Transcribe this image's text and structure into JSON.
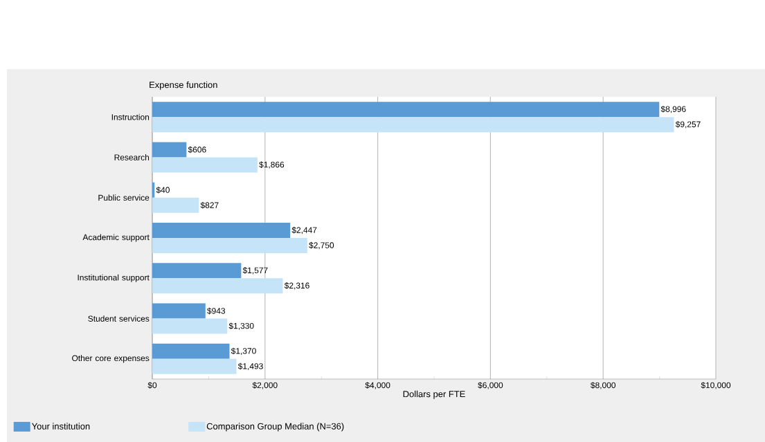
{
  "chart_data": {
    "type": "bar",
    "orientation": "horizontal",
    "ylabel": "Expense function",
    "xlabel": "Dollars per FTE",
    "categories": [
      "Instruction",
      "Research",
      "Public service",
      "Academic support",
      "Institutional support",
      "Student services",
      "Other core expenses"
    ],
    "series": [
      {
        "name": "Your institution",
        "color": "#5b9bd5",
        "values": [
          8996,
          606,
          40,
          2447,
          1577,
          943,
          1370
        ],
        "value_labels": [
          "$8,996",
          "$606",
          "$40",
          "$2,447",
          "$1,577",
          "$943",
          "$1,370"
        ]
      },
      {
        "name": "Comparison Group Median (N=36)",
        "color": "#c6e4f7",
        "values": [
          9257,
          1866,
          827,
          2750,
          2316,
          1330,
          1493
        ],
        "value_labels": [
          "$9,257",
          "$1,866",
          "$827",
          "$2,750",
          "$2,316",
          "$1,330",
          "$1,493"
        ]
      }
    ],
    "xlim": [
      0,
      10000
    ],
    "xticks": [
      {
        "value": 0,
        "label": "$0"
      },
      {
        "value": 1000,
        "label": null
      },
      {
        "value": 2000,
        "label": "$2,000"
      },
      {
        "value": 3000,
        "label": null
      },
      {
        "value": 4000,
        "label": "$4,000"
      },
      {
        "value": 5000,
        "label": null
      },
      {
        "value": 6000,
        "label": "$6,000"
      },
      {
        "value": 7000,
        "label": null
      },
      {
        "value": 8000,
        "label": "$8,000"
      },
      {
        "value": 9000,
        "label": null
      },
      {
        "value": 10000,
        "label": "$10,000"
      }
    ],
    "grid": "x",
    "legend": "bottom"
  }
}
